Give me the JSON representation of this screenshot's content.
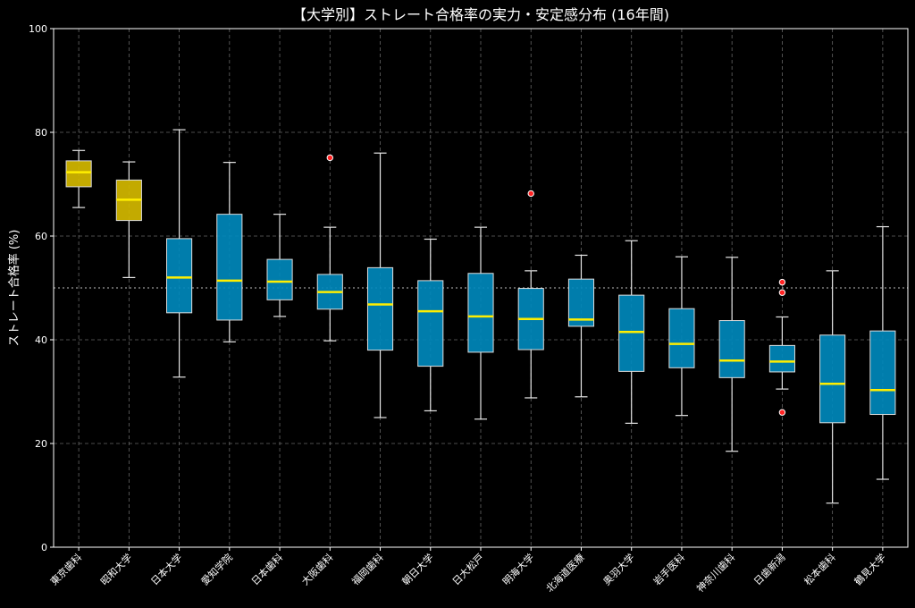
{
  "chart_data": {
    "type": "boxplot",
    "title": "【大学別】ストレート合格率の実力・安定感分布 (16年間)",
    "ylabel": "ストレート合格率 (%)",
    "xlabel": "",
    "ylim": [
      0,
      100
    ],
    "yticks": [
      0,
      20,
      40,
      60,
      80,
      100
    ],
    "reference_line": 50,
    "grid": true,
    "colors": {
      "background": "#000000",
      "box_default": "#0088bb",
      "box_highlight": "#d4b800",
      "median": "#ffee00",
      "whisker": "#e6e6e6",
      "outlier": "#ff2222",
      "grid": "#666666",
      "text": "#ffffff"
    },
    "boxes": [
      {
        "name": "東京歯科",
        "highlight": true,
        "whisker_low": 65.5,
        "q1": 69.5,
        "median": 72.3,
        "q3": 74.5,
        "whisker_high": 76.5,
        "outliers": []
      },
      {
        "name": "昭和大学",
        "highlight": true,
        "whisker_low": 52.0,
        "q1": 63.0,
        "median": 67.0,
        "q3": 70.8,
        "whisker_high": 74.3,
        "outliers": []
      },
      {
        "name": "日本大学",
        "highlight": false,
        "whisker_low": 32.8,
        "q1": 45.2,
        "median": 52.0,
        "q3": 59.5,
        "whisker_high": 80.5,
        "outliers": []
      },
      {
        "name": "愛知学院",
        "highlight": false,
        "whisker_low": 39.6,
        "q1": 43.8,
        "median": 51.4,
        "q3": 64.2,
        "whisker_high": 74.2,
        "outliers": []
      },
      {
        "name": "日本歯科",
        "highlight": false,
        "whisker_low": 44.5,
        "q1": 47.7,
        "median": 51.2,
        "q3": 55.5,
        "whisker_high": 64.2,
        "outliers": []
      },
      {
        "name": "大阪歯科",
        "highlight": false,
        "whisker_low": 39.8,
        "q1": 45.9,
        "median": 49.2,
        "q3": 52.6,
        "whisker_high": 61.7,
        "outliers": [
          75.1
        ]
      },
      {
        "name": "福岡歯科",
        "highlight": false,
        "whisker_low": 25.0,
        "q1": 38.0,
        "median": 46.8,
        "q3": 53.9,
        "whisker_high": 76.0,
        "outliers": []
      },
      {
        "name": "朝日大学",
        "highlight": false,
        "whisker_low": 26.3,
        "q1": 34.9,
        "median": 45.5,
        "q3": 51.4,
        "whisker_high": 59.4,
        "outliers": []
      },
      {
        "name": "日大松戸",
        "highlight": false,
        "whisker_low": 24.7,
        "q1": 37.6,
        "median": 44.5,
        "q3": 52.8,
        "whisker_high": 61.7,
        "outliers": []
      },
      {
        "name": "明海大学",
        "highlight": false,
        "whisker_low": 28.8,
        "q1": 38.1,
        "median": 44.0,
        "q3": 49.9,
        "whisker_high": 53.3,
        "outliers": [
          68.2
        ]
      },
      {
        "name": "北海道医療",
        "highlight": false,
        "whisker_low": 29.0,
        "q1": 42.6,
        "median": 43.9,
        "q3": 51.7,
        "whisker_high": 56.3,
        "outliers": []
      },
      {
        "name": "奥羽大学",
        "highlight": false,
        "whisker_low": 23.9,
        "q1": 33.9,
        "median": 41.5,
        "q3": 48.6,
        "whisker_high": 59.1,
        "outliers": []
      },
      {
        "name": "岩手医科",
        "highlight": false,
        "whisker_low": 25.4,
        "q1": 34.6,
        "median": 39.2,
        "q3": 46.0,
        "whisker_high": 56.0,
        "outliers": []
      },
      {
        "name": "神奈川歯科",
        "highlight": false,
        "whisker_low": 18.5,
        "q1": 32.7,
        "median": 36.0,
        "q3": 43.7,
        "whisker_high": 55.9,
        "outliers": []
      },
      {
        "name": "日歯新潟",
        "highlight": false,
        "whisker_low": 30.5,
        "q1": 33.8,
        "median": 35.8,
        "q3": 38.9,
        "whisker_high": 44.4,
        "outliers": [
          51.1,
          49.1,
          26.0
        ]
      },
      {
        "name": "松本歯科",
        "highlight": false,
        "whisker_low": 8.5,
        "q1": 24.0,
        "median": 31.5,
        "q3": 40.9,
        "whisker_high": 53.3,
        "outliers": []
      },
      {
        "name": "鶴見大学",
        "highlight": false,
        "whisker_low": 13.1,
        "q1": 25.6,
        "median": 30.3,
        "q3": 41.7,
        "whisker_high": 61.8,
        "outliers": []
      }
    ]
  }
}
